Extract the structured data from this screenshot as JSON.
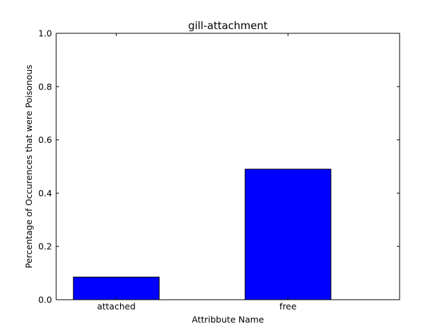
{
  "chart_data": {
    "type": "bar",
    "title": "gill-attachment",
    "xlabel": "Attribbute Name",
    "ylabel": "Percentage of Occurences that were Poisonous",
    "categories": [
      "attached",
      "free"
    ],
    "values": [
      0.085,
      0.49
    ],
    "ylim": [
      0,
      1
    ],
    "yticks": [
      "0.0",
      "0.2",
      "0.4",
      "0.6",
      "0.8",
      "1.0"
    ],
    "grid": false,
    "bar_color": "#0000ff"
  }
}
